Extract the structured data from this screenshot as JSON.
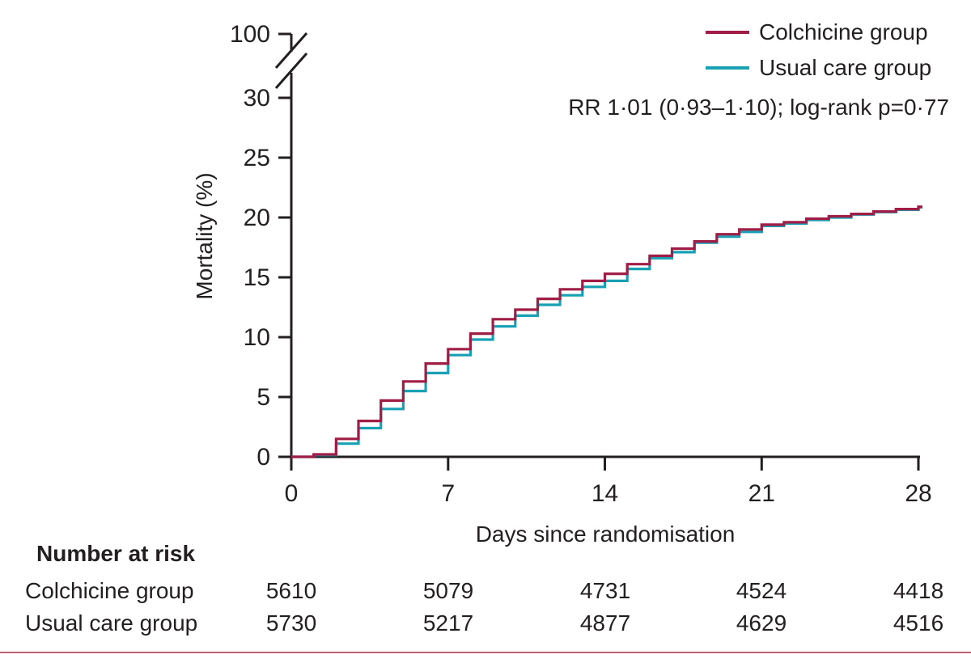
{
  "colors": {
    "colchicine": "#a01d46",
    "usual_care": "#18a1b5",
    "axis_and_text": "#231f20",
    "footer_rule": "#bb5e6e"
  },
  "chart_data": {
    "type": "line",
    "variant": "kaplan-meier-step",
    "title": "",
    "xlabel": "Days since randomisation",
    "ylabel": "Mortality (%)",
    "xlim": [
      0,
      28
    ],
    "ylim": [
      0,
      30
    ],
    "x_ticks": [
      0,
      7,
      14,
      21,
      28
    ],
    "y_ticks": [
      0,
      5,
      10,
      15,
      20,
      25,
      30
    ],
    "y_axis_break": {
      "upper_tick_label": "100"
    },
    "grid": false,
    "legend_position": "top-right",
    "annotation": "RR 1·01 (0·93–1·10); log-rank p=0·77",
    "x": [
      0,
      1,
      2,
      3,
      4,
      5,
      6,
      7,
      8,
      9,
      10,
      11,
      12,
      13,
      14,
      15,
      16,
      17,
      18,
      19,
      20,
      21,
      22,
      23,
      24,
      25,
      26,
      27,
      28
    ],
    "series": [
      {
        "name": "Colchicine group",
        "color": "#a01d46",
        "values": [
          0,
          0.2,
          1.5,
          3.0,
          4.7,
          6.3,
          7.8,
          9.0,
          10.3,
          11.5,
          12.3,
          13.2,
          14.0,
          14.7,
          15.3,
          16.1,
          16.8,
          17.4,
          18.0,
          18.6,
          19.0,
          19.4,
          19.6,
          19.9,
          20.1,
          20.3,
          20.5,
          20.7,
          20.9
        ]
      },
      {
        "name": "Usual care group",
        "color": "#18a1b5",
        "values": [
          0,
          0.15,
          1.1,
          2.4,
          4.0,
          5.5,
          7.0,
          8.5,
          9.8,
          10.9,
          11.8,
          12.7,
          13.5,
          14.2,
          14.7,
          15.7,
          16.6,
          17.1,
          17.9,
          18.4,
          18.8,
          19.3,
          19.5,
          19.8,
          20.0,
          20.25,
          20.45,
          20.65,
          20.85
        ]
      }
    ],
    "risk_table": {
      "header": "Number at risk",
      "timepoints": [
        0,
        7,
        14,
        21,
        28
      ],
      "rows": [
        {
          "label": "Colchicine group",
          "values": [
            "5610",
            "5079",
            "4731",
            "4524",
            "4418"
          ]
        },
        {
          "label": "Usual care group",
          "values": [
            "5730",
            "5217",
            "4877",
            "4629",
            "4516"
          ]
        }
      ]
    }
  }
}
